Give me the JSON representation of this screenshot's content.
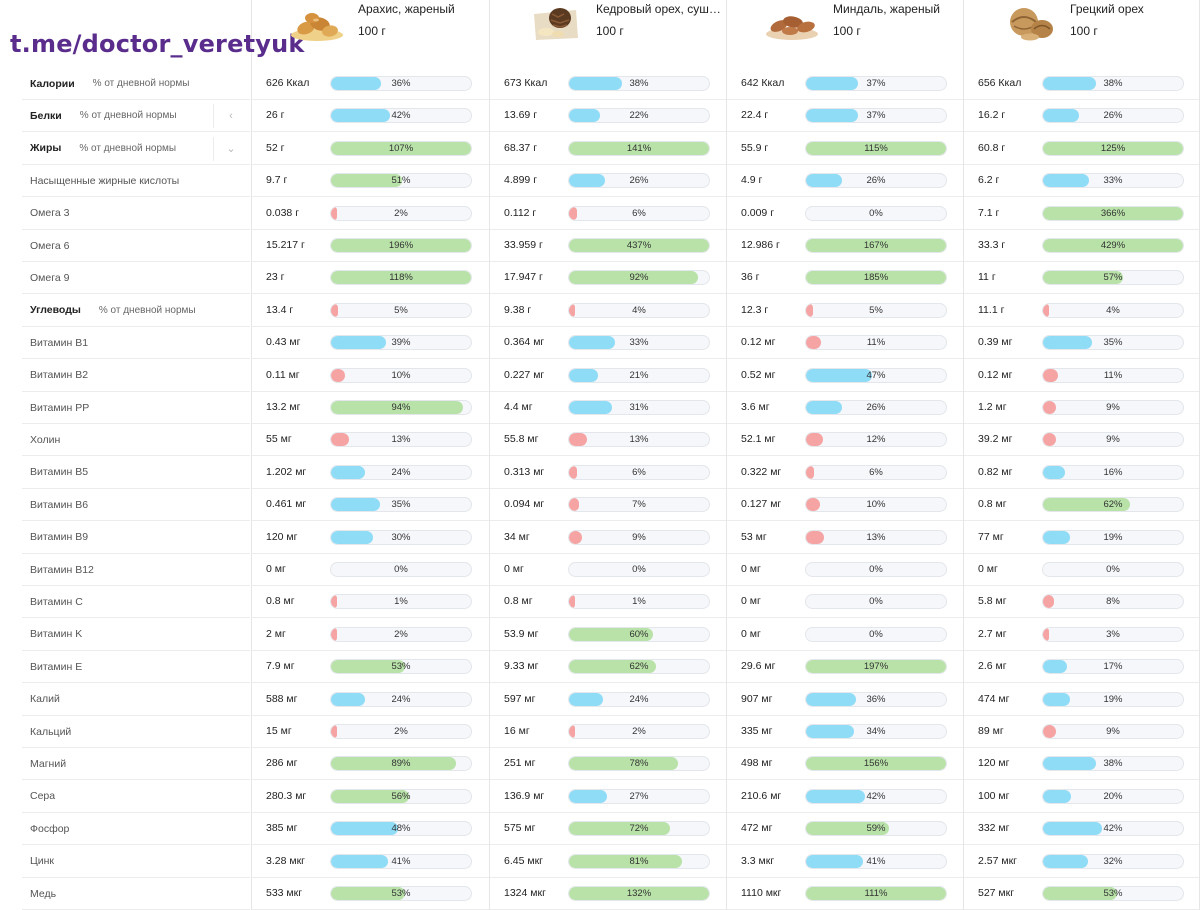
{
  "channel": "t.me/doctor_veretyuk",
  "products": [
    {
      "name": "Арахис, жареный",
      "weight": "100 г",
      "image": "peanut-image"
    },
    {
      "name": "Кедровый орех, суше...",
      "weight": "100 г",
      "image": "pine-nut-image"
    },
    {
      "name": "Миндаль, жареный",
      "weight": "100 г",
      "image": "almond-image"
    },
    {
      "name": "Грецкий орех",
      "weight": "100 г",
      "image": "walnut-image"
    }
  ],
  "colors": {
    "blue": "#8fdcf7",
    "green": "#b8e2a8",
    "red": "#f5a3a3"
  },
  "rows": [
    {
      "label": "Калории",
      "bold": true,
      "sub": "% от дневной нормы",
      "control": "",
      "cells": [
        {
          "value": "626 Ккал",
          "pct": "36%",
          "fill": 0.36,
          "color": "blue"
        },
        {
          "value": "673 Ккал",
          "pct": "38%",
          "fill": 0.38,
          "color": "blue"
        },
        {
          "value": "642 Ккал",
          "pct": "37%",
          "fill": 0.37,
          "color": "blue"
        },
        {
          "value": "656 Ккал",
          "pct": "38%",
          "fill": 0.38,
          "color": "blue"
        }
      ]
    },
    {
      "label": "Белки",
      "bold": true,
      "sub": "% от дневной нормы",
      "control": "‹",
      "cells": [
        {
          "value": "26 г",
          "pct": "42%",
          "fill": 0.42,
          "color": "blue"
        },
        {
          "value": "13.69 г",
          "pct": "22%",
          "fill": 0.22,
          "color": "blue"
        },
        {
          "value": "22.4 г",
          "pct": "37%",
          "fill": 0.37,
          "color": "blue"
        },
        {
          "value": "16.2 г",
          "pct": "26%",
          "fill": 0.26,
          "color": "blue"
        }
      ]
    },
    {
      "label": "Жиры",
      "bold": true,
      "sub": "% от дневной нормы",
      "control": "⌄",
      "cells": [
        {
          "value": "52 г",
          "pct": "107%",
          "fill": 1.0,
          "color": "green"
        },
        {
          "value": "68.37 г",
          "pct": "141%",
          "fill": 1.0,
          "color": "green"
        },
        {
          "value": "55.9 г",
          "pct": "115%",
          "fill": 1.0,
          "color": "green"
        },
        {
          "value": "60.8 г",
          "pct": "125%",
          "fill": 1.0,
          "color": "green"
        }
      ]
    },
    {
      "label": "Насыщенные жирные кислоты",
      "bold": false,
      "sub": "",
      "control": "",
      "cells": [
        {
          "value": "9.7 г",
          "pct": "51%",
          "fill": 0.51,
          "color": "green"
        },
        {
          "value": "4.899 г",
          "pct": "26%",
          "fill": 0.26,
          "color": "blue"
        },
        {
          "value": "4.9 г",
          "pct": "26%",
          "fill": 0.26,
          "color": "blue"
        },
        {
          "value": "6.2 г",
          "pct": "33%",
          "fill": 0.33,
          "color": "blue"
        }
      ]
    },
    {
      "label": "Омега 3",
      "bold": false,
      "sub": "",
      "control": "",
      "cells": [
        {
          "value": "0.038 г",
          "pct": "2%",
          "fill": 0.02,
          "color": "red"
        },
        {
          "value": "0.112 г",
          "pct": "6%",
          "fill": 0.06,
          "color": "red"
        },
        {
          "value": "0.009 г",
          "pct": "0%",
          "fill": 0,
          "color": "red"
        },
        {
          "value": "7.1 г",
          "pct": "366%",
          "fill": 1.0,
          "color": "green"
        }
      ]
    },
    {
      "label": "Омега 6",
      "bold": false,
      "sub": "",
      "control": "",
      "cells": [
        {
          "value": "15.217 г",
          "pct": "196%",
          "fill": 1.0,
          "color": "green"
        },
        {
          "value": "33.959 г",
          "pct": "437%",
          "fill": 1.0,
          "color": "green"
        },
        {
          "value": "12.986 г",
          "pct": "167%",
          "fill": 1.0,
          "color": "green"
        },
        {
          "value": "33.3 г",
          "pct": "429%",
          "fill": 1.0,
          "color": "green"
        }
      ]
    },
    {
      "label": "Омега 9",
      "bold": false,
      "sub": "",
      "control": "",
      "cells": [
        {
          "value": "23 г",
          "pct": "118%",
          "fill": 1.0,
          "color": "green"
        },
        {
          "value": "17.947 г",
          "pct": "92%",
          "fill": 0.92,
          "color": "green"
        },
        {
          "value": "36 г",
          "pct": "185%",
          "fill": 1.0,
          "color": "green"
        },
        {
          "value": "11 г",
          "pct": "57%",
          "fill": 0.57,
          "color": "green"
        }
      ]
    },
    {
      "label": "Углеводы",
      "bold": true,
      "sub": "% от дневной нормы",
      "control": "",
      "cells": [
        {
          "value": "13.4 г",
          "pct": "5%",
          "fill": 0.05,
          "color": "red"
        },
        {
          "value": "9.38 г",
          "pct": "4%",
          "fill": 0.04,
          "color": "red"
        },
        {
          "value": "12.3 г",
          "pct": "5%",
          "fill": 0.05,
          "color": "red"
        },
        {
          "value": "11.1 г",
          "pct": "4%",
          "fill": 0.04,
          "color": "red"
        }
      ]
    },
    {
      "label": "Витамин B1",
      "bold": false,
      "sub": "",
      "control": "",
      "cells": [
        {
          "value": "0.43 мг",
          "pct": "39%",
          "fill": 0.39,
          "color": "blue"
        },
        {
          "value": "0.364 мг",
          "pct": "33%",
          "fill": 0.33,
          "color": "blue"
        },
        {
          "value": "0.12 мг",
          "pct": "11%",
          "fill": 0.11,
          "color": "red"
        },
        {
          "value": "0.39 мг",
          "pct": "35%",
          "fill": 0.35,
          "color": "blue"
        }
      ]
    },
    {
      "label": "Витамин B2",
      "bold": false,
      "sub": "",
      "control": "",
      "cells": [
        {
          "value": "0.11 мг",
          "pct": "10%",
          "fill": 0.1,
          "color": "red"
        },
        {
          "value": "0.227 мг",
          "pct": "21%",
          "fill": 0.21,
          "color": "blue"
        },
        {
          "value": "0.52 мг",
          "pct": "47%",
          "fill": 0.47,
          "color": "blue"
        },
        {
          "value": "0.12 мг",
          "pct": "11%",
          "fill": 0.11,
          "color": "red"
        }
      ]
    },
    {
      "label": "Витамин PP",
      "bold": false,
      "sub": "",
      "control": "",
      "cells": [
        {
          "value": "13.2 мг",
          "pct": "94%",
          "fill": 0.94,
          "color": "green"
        },
        {
          "value": "4.4 мг",
          "pct": "31%",
          "fill": 0.31,
          "color": "blue"
        },
        {
          "value": "3.6 мг",
          "pct": "26%",
          "fill": 0.26,
          "color": "blue"
        },
        {
          "value": "1.2 мг",
          "pct": "9%",
          "fill": 0.09,
          "color": "red"
        }
      ]
    },
    {
      "label": "Холин",
      "bold": false,
      "sub": "",
      "control": "",
      "cells": [
        {
          "value": "55 мг",
          "pct": "13%",
          "fill": 0.13,
          "color": "red"
        },
        {
          "value": "55.8 мг",
          "pct": "13%",
          "fill": 0.13,
          "color": "red"
        },
        {
          "value": "52.1 мг",
          "pct": "12%",
          "fill": 0.12,
          "color": "red"
        },
        {
          "value": "39.2 мг",
          "pct": "9%",
          "fill": 0.09,
          "color": "red"
        }
      ]
    },
    {
      "label": "Витамин B5",
      "bold": false,
      "sub": "",
      "control": "",
      "cells": [
        {
          "value": "1.202 мг",
          "pct": "24%",
          "fill": 0.24,
          "color": "blue"
        },
        {
          "value": "0.313 мг",
          "pct": "6%",
          "fill": 0.06,
          "color": "red"
        },
        {
          "value": "0.322 мг",
          "pct": "6%",
          "fill": 0.06,
          "color": "red"
        },
        {
          "value": "0.82 мг",
          "pct": "16%",
          "fill": 0.16,
          "color": "blue"
        }
      ]
    },
    {
      "label": "Витамин B6",
      "bold": false,
      "sub": "",
      "control": "",
      "cells": [
        {
          "value": "0.461 мг",
          "pct": "35%",
          "fill": 0.35,
          "color": "blue"
        },
        {
          "value": "0.094 мг",
          "pct": "7%",
          "fill": 0.07,
          "color": "red"
        },
        {
          "value": "0.127 мг",
          "pct": "10%",
          "fill": 0.1,
          "color": "red"
        },
        {
          "value": "0.8 мг",
          "pct": "62%",
          "fill": 0.62,
          "color": "green"
        }
      ]
    },
    {
      "label": "Витамин B9",
      "bold": false,
      "sub": "",
      "control": "",
      "cells": [
        {
          "value": "120 мг",
          "pct": "30%",
          "fill": 0.3,
          "color": "blue"
        },
        {
          "value": "34 мг",
          "pct": "9%",
          "fill": 0.09,
          "color": "red"
        },
        {
          "value": "53 мг",
          "pct": "13%",
          "fill": 0.13,
          "color": "red"
        },
        {
          "value": "77 мг",
          "pct": "19%",
          "fill": 0.19,
          "color": "blue"
        }
      ]
    },
    {
      "label": "Витамин B12",
      "bold": false,
      "sub": "",
      "control": "",
      "cells": [
        {
          "value": "0 мг",
          "pct": "0%",
          "fill": 0,
          "color": "red"
        },
        {
          "value": "0 мг",
          "pct": "0%",
          "fill": 0,
          "color": "red"
        },
        {
          "value": "0 мг",
          "pct": "0%",
          "fill": 0,
          "color": "red"
        },
        {
          "value": "0 мг",
          "pct": "0%",
          "fill": 0,
          "color": "red"
        }
      ]
    },
    {
      "label": "Витамин C",
      "bold": false,
      "sub": "",
      "control": "",
      "cells": [
        {
          "value": "0.8 мг",
          "pct": "1%",
          "fill": 0.01,
          "color": "red"
        },
        {
          "value": "0.8 мг",
          "pct": "1%",
          "fill": 0.01,
          "color": "red"
        },
        {
          "value": "0 мг",
          "pct": "0%",
          "fill": 0,
          "color": "red"
        },
        {
          "value": "5.8 мг",
          "pct": "8%",
          "fill": 0.08,
          "color": "red"
        }
      ]
    },
    {
      "label": "Витамин K",
      "bold": false,
      "sub": "",
      "control": "",
      "cells": [
        {
          "value": "2 мг",
          "pct": "2%",
          "fill": 0.02,
          "color": "red"
        },
        {
          "value": "53.9 мг",
          "pct": "60%",
          "fill": 0.6,
          "color": "green"
        },
        {
          "value": "0 мг",
          "pct": "0%",
          "fill": 0,
          "color": "red"
        },
        {
          "value": "2.7 мг",
          "pct": "3%",
          "fill": 0.03,
          "color": "red"
        }
      ]
    },
    {
      "label": "Витамин E",
      "bold": false,
      "sub": "",
      "control": "",
      "cells": [
        {
          "value": "7.9 мг",
          "pct": "53%",
          "fill": 0.53,
          "color": "green"
        },
        {
          "value": "9.33 мг",
          "pct": "62%",
          "fill": 0.62,
          "color": "green"
        },
        {
          "value": "29.6 мг",
          "pct": "197%",
          "fill": 1.0,
          "color": "green"
        },
        {
          "value": "2.6 мг",
          "pct": "17%",
          "fill": 0.17,
          "color": "blue"
        }
      ]
    },
    {
      "label": "Калий",
      "bold": false,
      "sub": "",
      "control": "",
      "cells": [
        {
          "value": "588 мг",
          "pct": "24%",
          "fill": 0.24,
          "color": "blue"
        },
        {
          "value": "597 мг",
          "pct": "24%",
          "fill": 0.24,
          "color": "blue"
        },
        {
          "value": "907 мг",
          "pct": "36%",
          "fill": 0.36,
          "color": "blue"
        },
        {
          "value": "474 мг",
          "pct": "19%",
          "fill": 0.19,
          "color": "blue"
        }
      ]
    },
    {
      "label": "Кальций",
      "bold": false,
      "sub": "",
      "control": "",
      "cells": [
        {
          "value": "15 мг",
          "pct": "2%",
          "fill": 0.02,
          "color": "red"
        },
        {
          "value": "16 мг",
          "pct": "2%",
          "fill": 0.02,
          "color": "red"
        },
        {
          "value": "335 мг",
          "pct": "34%",
          "fill": 0.34,
          "color": "blue"
        },
        {
          "value": "89 мг",
          "pct": "9%",
          "fill": 0.09,
          "color": "red"
        }
      ]
    },
    {
      "label": "Магний",
      "bold": false,
      "sub": "",
      "control": "",
      "cells": [
        {
          "value": "286 мг",
          "pct": "89%",
          "fill": 0.89,
          "color": "green"
        },
        {
          "value": "251 мг",
          "pct": "78%",
          "fill": 0.78,
          "color": "green"
        },
        {
          "value": "498 мг",
          "pct": "156%",
          "fill": 1.0,
          "color": "green"
        },
        {
          "value": "120 мг",
          "pct": "38%",
          "fill": 0.38,
          "color": "blue"
        }
      ]
    },
    {
      "label": "Сера",
      "bold": false,
      "sub": "",
      "control": "",
      "cells": [
        {
          "value": "280.3 мг",
          "pct": "56%",
          "fill": 0.56,
          "color": "green"
        },
        {
          "value": "136.9 мг",
          "pct": "27%",
          "fill": 0.27,
          "color": "blue"
        },
        {
          "value": "210.6 мг",
          "pct": "42%",
          "fill": 0.42,
          "color": "blue"
        },
        {
          "value": "100 мг",
          "pct": "20%",
          "fill": 0.2,
          "color": "blue"
        }
      ]
    },
    {
      "label": "Фосфор",
      "bold": false,
      "sub": "",
      "control": "",
      "cells": [
        {
          "value": "385 мг",
          "pct": "48%",
          "fill": 0.48,
          "color": "blue"
        },
        {
          "value": "575 мг",
          "pct": "72%",
          "fill": 0.72,
          "color": "green"
        },
        {
          "value": "472 мг",
          "pct": "59%",
          "fill": 0.59,
          "color": "green"
        },
        {
          "value": "332 мг",
          "pct": "42%",
          "fill": 0.42,
          "color": "blue"
        }
      ]
    },
    {
      "label": "Цинк",
      "bold": false,
      "sub": "",
      "control": "",
      "cells": [
        {
          "value": "3.28 мкг",
          "pct": "41%",
          "fill": 0.41,
          "color": "blue"
        },
        {
          "value": "6.45 мкг",
          "pct": "81%",
          "fill": 0.81,
          "color": "green"
        },
        {
          "value": "3.3 мкг",
          "pct": "41%",
          "fill": 0.41,
          "color": "blue"
        },
        {
          "value": "2.57 мкг",
          "pct": "32%",
          "fill": 0.32,
          "color": "blue"
        }
      ]
    },
    {
      "label": "Медь",
      "bold": false,
      "sub": "",
      "control": "",
      "cells": [
        {
          "value": "533 мкг",
          "pct": "53%",
          "fill": 0.53,
          "color": "green"
        },
        {
          "value": "1324 мкг",
          "pct": "132%",
          "fill": 1.0,
          "color": "green"
        },
        {
          "value": "1110 мкг",
          "pct": "111%",
          "fill": 1.0,
          "color": "green"
        },
        {
          "value": "527 мкг",
          "pct": "53%",
          "fill": 0.53,
          "color": "green"
        }
      ]
    }
  ]
}
